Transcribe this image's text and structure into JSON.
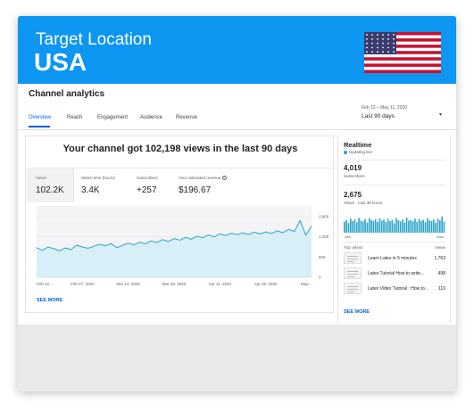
{
  "banner": {
    "label": "Target Location",
    "country": "USA"
  },
  "header": {
    "title": "Channel analytics",
    "tabs": [
      {
        "label": "Overview",
        "active": true
      },
      {
        "label": "Reach",
        "active": false
      },
      {
        "label": "Engagement",
        "active": false
      },
      {
        "label": "Audience",
        "active": false
      },
      {
        "label": "Revenue",
        "active": false
      }
    ],
    "date_range": "Feb 12 – May 11, 2020",
    "period": "Last 90 days"
  },
  "overview": {
    "headline": "Your channel got 102,198 views in the last 90 days",
    "metrics": [
      {
        "label": "Views",
        "value": "102.2K"
      },
      {
        "label": "Watch time (hours)",
        "value": "3.4K"
      },
      {
        "label": "Subscribers",
        "value": "+257"
      },
      {
        "label": "Your estimated revenue",
        "value": "$196.67"
      }
    ],
    "see_more": "SEE MORE"
  },
  "chart_data": {
    "type": "area",
    "x_ticks": [
      "Feb 12,...",
      "Feb 27, 2020",
      "Mar 13, 2020",
      "Mar 28, 2020",
      "Apr 11, 2020",
      "Apr 26, 2020",
      "May..."
    ],
    "y_ticks": [
      "1,800",
      "1,200",
      "600",
      "0"
    ],
    "ylim": [
      0,
      1800
    ],
    "series": [
      {
        "values": [
          880,
          800,
          900,
          850,
          780,
          870,
          820,
          950,
          900,
          860,
          920,
          980,
          930,
          1000,
          880,
          950,
          1010,
          960,
          1040,
          990,
          1080,
          1030,
          1120,
          1060,
          1150,
          1100,
          1180,
          1130,
          1220,
          1170,
          1260,
          1200,
          1290,
          1240,
          1310,
          1260,
          1320,
          1270,
          1340,
          1290,
          1350,
          1300,
          1380,
          1330,
          1420,
          1360,
          1680,
          1250,
          1520
        ]
      }
    ],
    "colors": {
      "line": "#2ba3c8",
      "fill": "#d9eff7"
    }
  },
  "realtime": {
    "title": "Realtime",
    "status": "Updating live",
    "subscribers_value": "4,019",
    "subscribers_label": "Subscribers",
    "views_value": "2,675",
    "views_label": "Views · Last 48 hours",
    "bar_start": "-48h",
    "bar_end": "Now",
    "bars": [
      55,
      62,
      48,
      70,
      58,
      66,
      52,
      74,
      61,
      57,
      68,
      50,
      72,
      63,
      59,
      67,
      54,
      71,
      60,
      65,
      53,
      69,
      58,
      64,
      47,
      73,
      62,
      56,
      66,
      51,
      75,
      60,
      63,
      57,
      70,
      54,
      68,
      59,
      64,
      52,
      72,
      61,
      58,
      66,
      49,
      69,
      62,
      80,
      55
    ],
    "top_videos_label": "Top videos",
    "top_videos_views_label": "Views",
    "top_videos": [
      {
        "title": "Learn Latex in 5 minutes",
        "views": "1,763"
      },
      {
        "title": "Latex Tutorial How to write...",
        "views": "498"
      },
      {
        "title": "Latex Video Tutorial : How to...",
        "views": "110"
      }
    ],
    "see_more": "SEE MORE"
  }
}
